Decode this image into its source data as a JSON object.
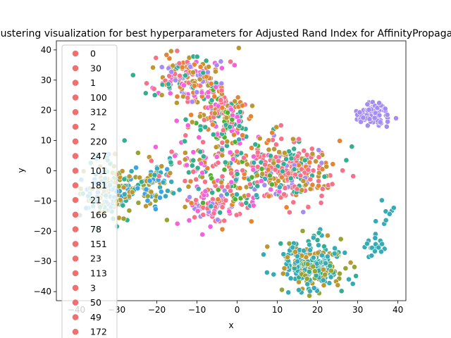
{
  "chart_data": {
    "type": "scatter",
    "title": "Clustering visualization for best hyperparameters for Adjusted Rand Index for AffinityPropagation",
    "xlabel": "x",
    "ylabel": "y",
    "xlim": [
      -45,
      42
    ],
    "ylim": [
      -43,
      43
    ],
    "xticks": [
      -40,
      -30,
      -20,
      -10,
      0,
      10,
      20,
      30,
      40
    ],
    "yticks": [
      -40,
      -30,
      -20,
      -10,
      0,
      10,
      20,
      30,
      40
    ],
    "grid": false,
    "legend_position": "upper-left",
    "legend_entries": [
      "0",
      "30",
      "1",
      "100",
      "312",
      "2",
      "220",
      "247",
      "101",
      "181",
      "21",
      "166",
      "78",
      "151",
      "23",
      "113",
      "3",
      "50",
      "49",
      "172"
    ],
    "legend_color": "#f07070",
    "palette": [
      "#f77189",
      "#e58432",
      "#bb9832",
      "#97a431",
      "#50b131",
      "#34ae91",
      "#37abb5",
      "#3ba3ec",
      "#a48cf4",
      "#f561dd"
    ],
    "clusters": [
      {
        "cx": 34,
        "cy": 19,
        "sx": 2.0,
        "sy": 2.2,
        "n": 70,
        "colors": [
          8
        ]
      },
      {
        "cx": 19,
        "cy": -31,
        "sx": 4.0,
        "sy": 4.0,
        "n": 260,
        "colors": [
          6,
          6,
          6,
          2,
          5,
          3
        ]
      },
      {
        "cx": 34,
        "cy": -25,
        "sx": 1.5,
        "sy": 1.5,
        "n": 18,
        "colors": [
          6
        ]
      },
      {
        "cx": 37,
        "cy": -15,
        "sx": 1.0,
        "sy": 1.5,
        "n": 8,
        "colors": [
          6
        ]
      },
      {
        "cx": 13,
        "cy": 0,
        "sx": 5.0,
        "sy": 5.0,
        "n": 270,
        "colors": [
          0,
          0,
          0,
          1,
          2,
          5,
          8
        ]
      },
      {
        "cx": -4,
        "cy": 18,
        "sx": 4.0,
        "sy": 5.0,
        "n": 170,
        "colors": [
          4,
          1,
          0,
          2,
          5,
          9
        ]
      },
      {
        "cx": -12,
        "cy": 31,
        "sx": 5.0,
        "sy": 4.0,
        "n": 170,
        "colors": [
          8,
          2,
          1,
          0,
          9,
          5
        ]
      },
      {
        "cx": -31,
        "cy": -6,
        "sx": 3.5,
        "sy": 5.0,
        "n": 160,
        "colors": [
          6,
          7,
          2,
          3,
          5
        ]
      },
      {
        "cx": -21,
        "cy": -6,
        "sx": 2.5,
        "sy": 4.0,
        "n": 70,
        "colors": [
          6,
          7,
          3,
          2
        ]
      },
      {
        "cx": -6,
        "cy": -12,
        "sx": 3.0,
        "sy": 3.0,
        "n": 70,
        "colors": [
          9,
          8,
          0
        ]
      },
      {
        "cx": 0,
        "cy": -2,
        "sx": 6.0,
        "sy": 6.0,
        "n": 140,
        "colors": [
          0,
          1,
          2,
          4,
          5,
          9,
          6
        ]
      },
      {
        "cx": -11,
        "cy": 2,
        "sx": 5.0,
        "sy": 5.0,
        "n": 60,
        "colors": [
          9,
          2,
          5,
          0
        ]
      }
    ]
  }
}
